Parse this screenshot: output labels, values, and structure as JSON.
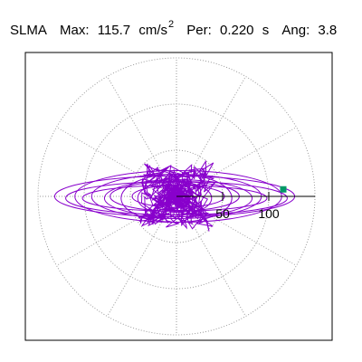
{
  "header": {
    "station": "SLMA",
    "max_label": "Max:",
    "max_value": "115.7",
    "max_unit": "cm/s",
    "max_unit_exp": "2",
    "per_label": "Per:",
    "per_value": "0.220",
    "per_unit": "s",
    "ang_label": "Ang:",
    "ang_value": "3.8"
  },
  "chart_data": {
    "type": "line",
    "coordinate_system": "polar",
    "radial_ticks": [
      50,
      100
    ],
    "radial_tick_labels": [
      "50",
      "100"
    ],
    "rmax": 150,
    "grid": true,
    "grid_style": "dotted",
    "spokes_deg": [
      0,
      30,
      60,
      90,
      120,
      150,
      180,
      210,
      240,
      270,
      300,
      330
    ],
    "series": [
      {
        "color": "#8800cc"
      }
    ],
    "marker": {
      "x": 115.7,
      "y": 7.6,
      "color": "#009966"
    },
    "ellipses": [
      {
        "a": 130,
        "b": 22
      },
      {
        "a": 120,
        "b": 18
      },
      {
        "a": 112,
        "b": 28
      },
      {
        "a": 100,
        "b": 14
      },
      {
        "a": 92,
        "b": 24
      },
      {
        "a": 80,
        "b": 20
      },
      {
        "a": 70,
        "b": 16
      },
      {
        "a": 60,
        "b": 26
      },
      {
        "a": 50,
        "b": 12
      },
      {
        "a": 40,
        "b": 18
      }
    ]
  }
}
